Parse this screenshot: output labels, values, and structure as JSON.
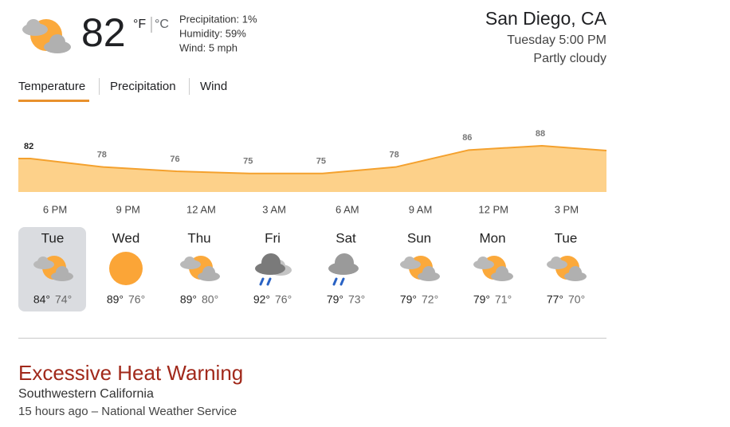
{
  "current": {
    "temperature": "82",
    "unit_f": "°F",
    "unit_c": "°C",
    "precipitation": "Precipitation: 1%",
    "humidity": "Humidity: 59%",
    "wind": "Wind: 5 mph"
  },
  "location": {
    "place": "San Diego, CA",
    "time": "Tuesday 5:00 PM",
    "condition": "Partly cloudy"
  },
  "tabs": [
    "Temperature",
    "Precipitation",
    "Wind"
  ],
  "hourly_chart": {
    "type": "area",
    "categories": [
      "6 PM",
      "9 PM",
      "12 AM",
      "3 AM",
      "6 AM",
      "9 AM",
      "12 PM",
      "3 PM"
    ],
    "values": [
      82,
      78,
      76,
      75,
      75,
      78,
      86,
      88
    ],
    "color": "#f4a12e",
    "fill": "#fdd18a"
  },
  "days": [
    {
      "name": "Tue",
      "high": "84°",
      "low": "74°"
    },
    {
      "name": "Wed",
      "high": "89°",
      "low": "76°"
    },
    {
      "name": "Thu",
      "high": "89°",
      "low": "80°"
    },
    {
      "name": "Fri",
      "high": "92°",
      "low": "76°"
    },
    {
      "name": "Sat",
      "high": "79°",
      "low": "73°"
    },
    {
      "name": "Sun",
      "high": "79°",
      "low": "72°"
    },
    {
      "name": "Mon",
      "high": "79°",
      "low": "71°"
    },
    {
      "name": "Tue",
      "high": "77°",
      "low": "70°"
    }
  ],
  "alert": {
    "title": "Excessive Heat Warning",
    "region": "Southwestern California",
    "source": "15 hours ago – National Weather Service"
  }
}
